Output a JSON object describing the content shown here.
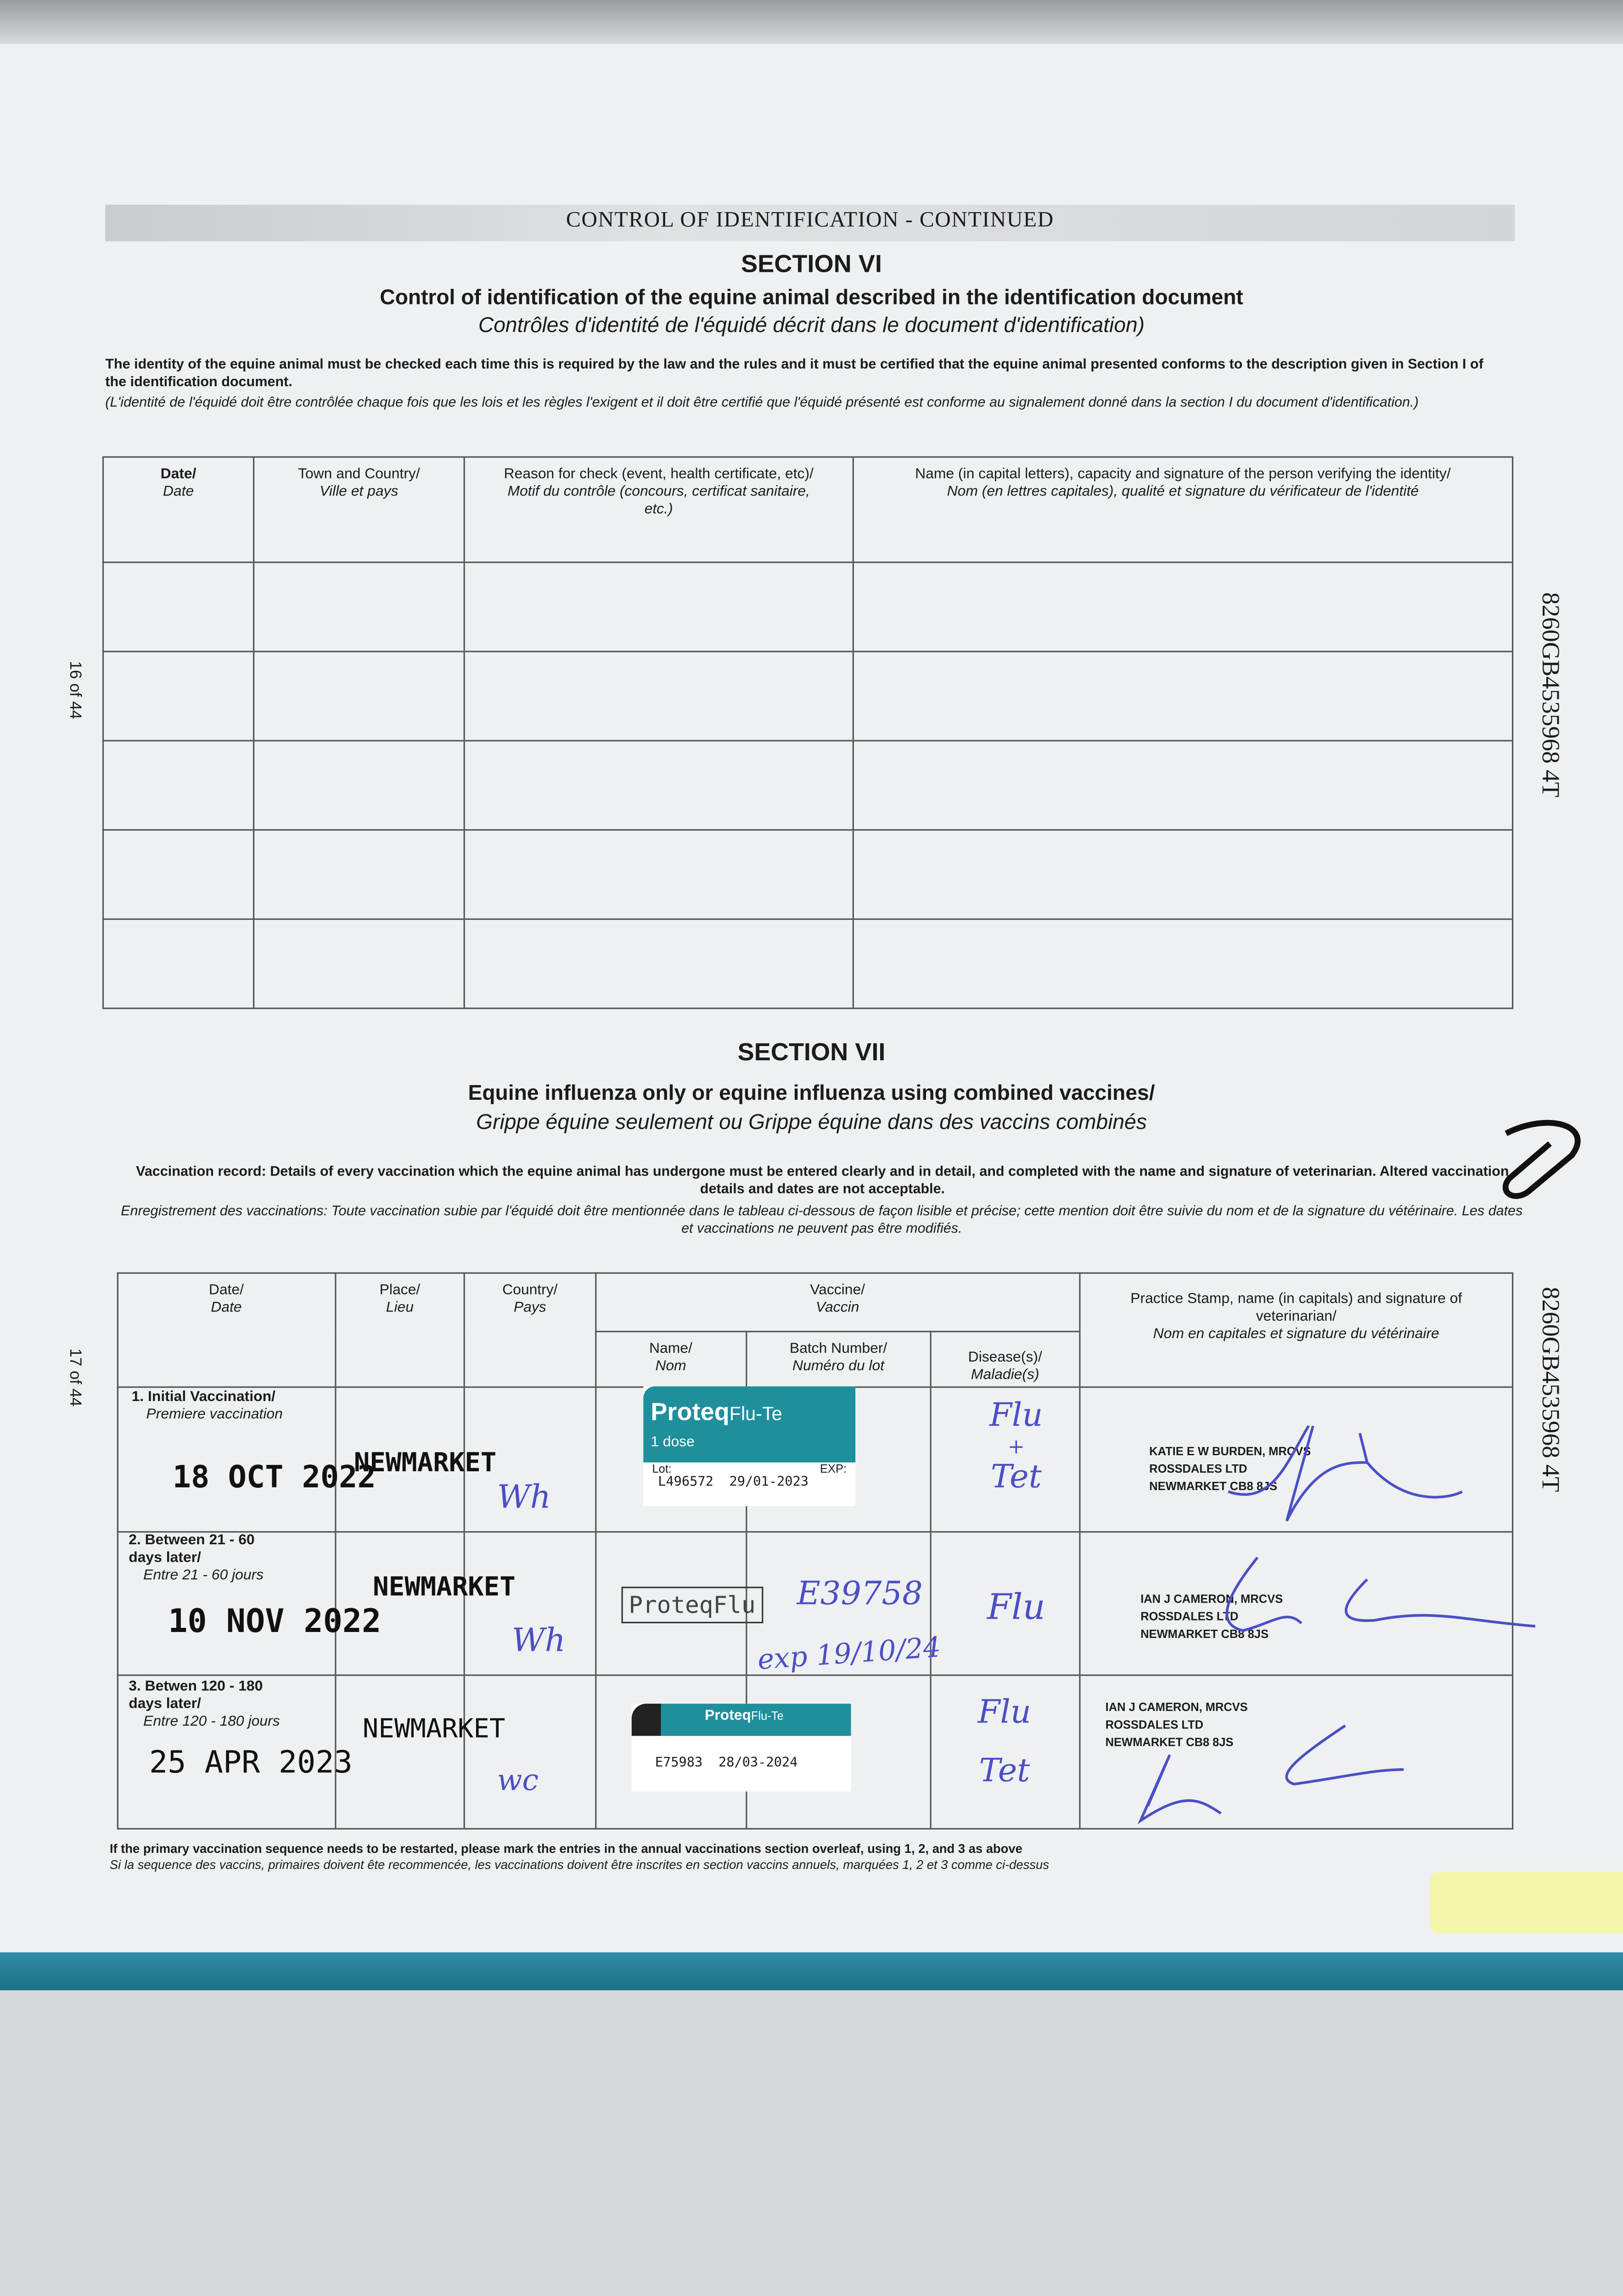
{
  "page_header": "CONTROL OF IDENTIFICATION - CONTINUED",
  "side_labels": {
    "page_top": "16 of 44",
    "page_bottom": "17 of 44",
    "id_number_top": "8260GB4535968 4T",
    "id_number_bottom": "8260GB4535968 4T"
  },
  "section6": {
    "heading": "SECTION VI",
    "title_en": "Control of identification of the equine animal described in the identification document",
    "title_fr": "Contrôles d'identité de l'équidé décrit dans le document d'identification)",
    "intro_en": "The identity of the equine animal must be checked each time this is required by the law and the rules and it must be certified that the equine animal presented conforms to the description given in Section I of the identification document.",
    "intro_fr": "(L'identité de l'équidé doit être contrôlée chaque fois que les lois et les règles l'exigent et il doit être certifié que l'équidé présenté est conforme au signalement donné dans la section I du document d'identification.)",
    "columns": [
      {
        "en": "Date/",
        "fr": "Date"
      },
      {
        "en": "Town and Country/",
        "fr": "Ville et pays"
      },
      {
        "en": "Reason for check (event, health certificate, etc)/",
        "fr": "Motif du contrôle (concours, certificat sanitaire, etc.)"
      },
      {
        "en": "Name (in capital letters), capacity and signature of the person verifying the identity/",
        "fr": "Nom (en lettres capitales), qualité et signature du vérificateur de l'identité"
      }
    ]
  },
  "section7": {
    "heading": "SECTION VII",
    "title_en": "Equine influenza only or equine influenza using combined vaccines/",
    "title_fr": "Grippe équine seulement ou Grippe équine dans des vaccins combinés",
    "intro_en": "Vaccination record: Details of every vaccination which the equine animal has undergone must be entered clearly and in detail, and completed with the name and signature of veterinarian. Altered vaccination details and dates are not acceptable.",
    "intro_fr": "Enregistrement des vaccinations: Toute vaccination subie par l'équidé doit être mentionnée dans le tableau ci-dessous de façon lisible et précise; cette mention doit être suivie du nom et de la signature du vétérinaire. Les dates et vaccinations ne peuvent pas être modifiés.",
    "columns": {
      "date": {
        "en": "Date/",
        "fr": "Date"
      },
      "place": {
        "en": "Place/",
        "fr": "Lieu"
      },
      "country": {
        "en": "Country/",
        "fr": "Pays"
      },
      "vaccine": {
        "en": "Vaccine/",
        "fr": "Vaccin"
      },
      "name": {
        "en": "Name/",
        "fr": "Nom"
      },
      "batch": {
        "en": "Batch Number/",
        "fr": "Numéro du lot"
      },
      "disease": {
        "en": "Disease(s)/",
        "fr": "Maladie(s)"
      },
      "vet": {
        "en": "Practice Stamp, name (in capitals) and signature of veterinarian/",
        "fr": "Nom en capitales et signature du vétérinaire"
      }
    },
    "rows": [
      {
        "label_en": "1. Initial Vaccination/",
        "label_fr": "Premiere vaccination",
        "date": "18 OCT 2022",
        "place": "NEWMARKET",
        "initials": "Wh",
        "vaccine_brand": "Proteq",
        "vaccine_product": "Flu-Te",
        "vaccine_dose": "1 dose",
        "lot_label": "Lot:",
        "exp_label": "EXP:",
        "batch": "L496572",
        "expiry": "29/01-2023",
        "disease_1": "Flu",
        "disease_2": "+",
        "disease_3": "Tet",
        "vet_name": "KATIE E W BURDEN, MRCVS",
        "vet_practice": "ROSSDALES LTD",
        "vet_address": "NEWMARKET CB8 8JS"
      },
      {
        "label_en": "2. Between 21 - 60 days later/",
        "label_fr": "Entre 21 - 60 jours",
        "date": "10 NOV 2022",
        "place": "NEWMARKET",
        "initials": "Wh",
        "vaccine_name": "ProteqFlu",
        "batch": "E39758",
        "expiry": "exp 19/10/24",
        "disease_1": "Flu",
        "vet_name": "IAN J CAMERON, MRCVS",
        "vet_practice": "ROSSDALES LTD",
        "vet_address": "NEWMARKET CB8 8JS"
      },
      {
        "label_en": "3. Betwen 120 - 180 days later/",
        "label_fr": "Entre 120 - 180 jours",
        "date": "25 APR 2023",
        "place": "NEWMARKET",
        "initials": "wc",
        "vaccine_brand": "Proteq",
        "vaccine_product": "Flu-Te",
        "batch": "E75983",
        "expiry": "28/03-2024",
        "disease_1": "Flu",
        "disease_2": "Tet",
        "vet_name": "IAN J CAMERON, MRCVS",
        "vet_practice": "ROSSDALES LTD",
        "vet_address": "NEWMARKET CB8 8JS"
      }
    ],
    "footer_en": "If the primary vaccination sequence needs to be restarted, please mark the entries in the annual vaccinations section overleaf, using 1, 2, and 3 as above",
    "footer_fr": "Si la sequence des vaccins, primaires doivent ête recommencée, les vaccinations doivent être inscrites en section vaccins annuels, marquées 1, 2 et 3 comme ci-dessus"
  },
  "colors": {
    "label_teal": "#1f8f9c",
    "ink_blue": "#4b4fc4",
    "cover": "#2d8ea6",
    "sticky": "#f3f6a8"
  }
}
